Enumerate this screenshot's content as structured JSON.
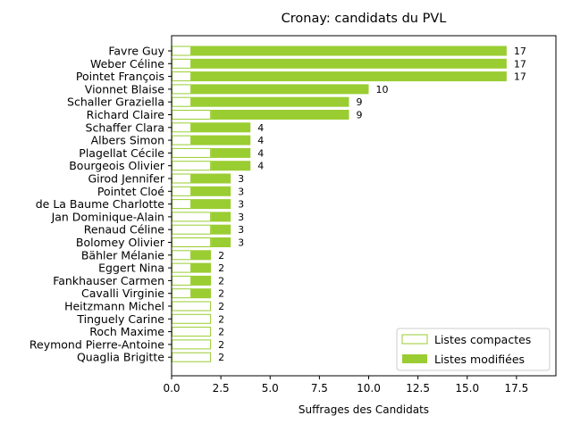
{
  "chart_data": {
    "type": "bar",
    "orientation": "horizontal",
    "stacked": true,
    "title": "Cronay: candidats du PVL",
    "xlabel": "Suffrages des Candidats",
    "ylabel": "",
    "xlim": [
      0,
      19.5
    ],
    "xticks": [
      "0.0",
      "2.5",
      "5.0",
      "7.5",
      "10.0",
      "12.5",
      "15.0",
      "17.5"
    ],
    "grid": false,
    "legend_position": "bottom-right",
    "categories": [
      "Favre Guy",
      "Weber Céline",
      "Pointet François",
      "Vionnet Blaise",
      "Schaller Graziella",
      "Richard Claire",
      "Schaffer Clara",
      "Albers Simon",
      "Plagellat Cécile",
      "Bourgeois Olivier",
      "Girod Jennifer",
      "Pointet Cloé",
      "de La Baume Charlotte",
      "Jan Dominique-Alain",
      "Renaud Céline",
      "Bolomey Olivier",
      "Bähler Mélanie",
      "Eggert Nina",
      "Fankhauser Carmen",
      "Cavalli Virginie",
      "Heitzmann Michel",
      "Tinguely Carine",
      "Roch Maxime",
      "Reymond Pierre-Antoine",
      "Quaglia Brigitte"
    ],
    "series": [
      {
        "name": "Listes compactes",
        "color": "#9acd32",
        "style": "outline",
        "values": [
          1,
          1,
          1,
          1,
          1,
          2,
          1,
          1,
          2,
          2,
          1,
          1,
          1,
          2,
          2,
          2,
          1,
          1,
          1,
          1,
          2,
          2,
          2,
          2,
          2
        ]
      },
      {
        "name": "Listes modifiées",
        "color": "#9acd32",
        "style": "filled",
        "values": [
          16,
          16,
          16,
          9,
          8,
          7,
          3,
          3,
          2,
          2,
          2,
          2,
          2,
          1,
          1,
          1,
          1,
          1,
          1,
          1,
          0,
          0,
          0,
          0,
          0
        ]
      }
    ],
    "totals": [
      17,
      17,
      17,
      10,
      9,
      9,
      4,
      4,
      4,
      4,
      3,
      3,
      3,
      3,
      3,
      3,
      2,
      2,
      2,
      2,
      2,
      2,
      2,
      2,
      2
    ]
  }
}
